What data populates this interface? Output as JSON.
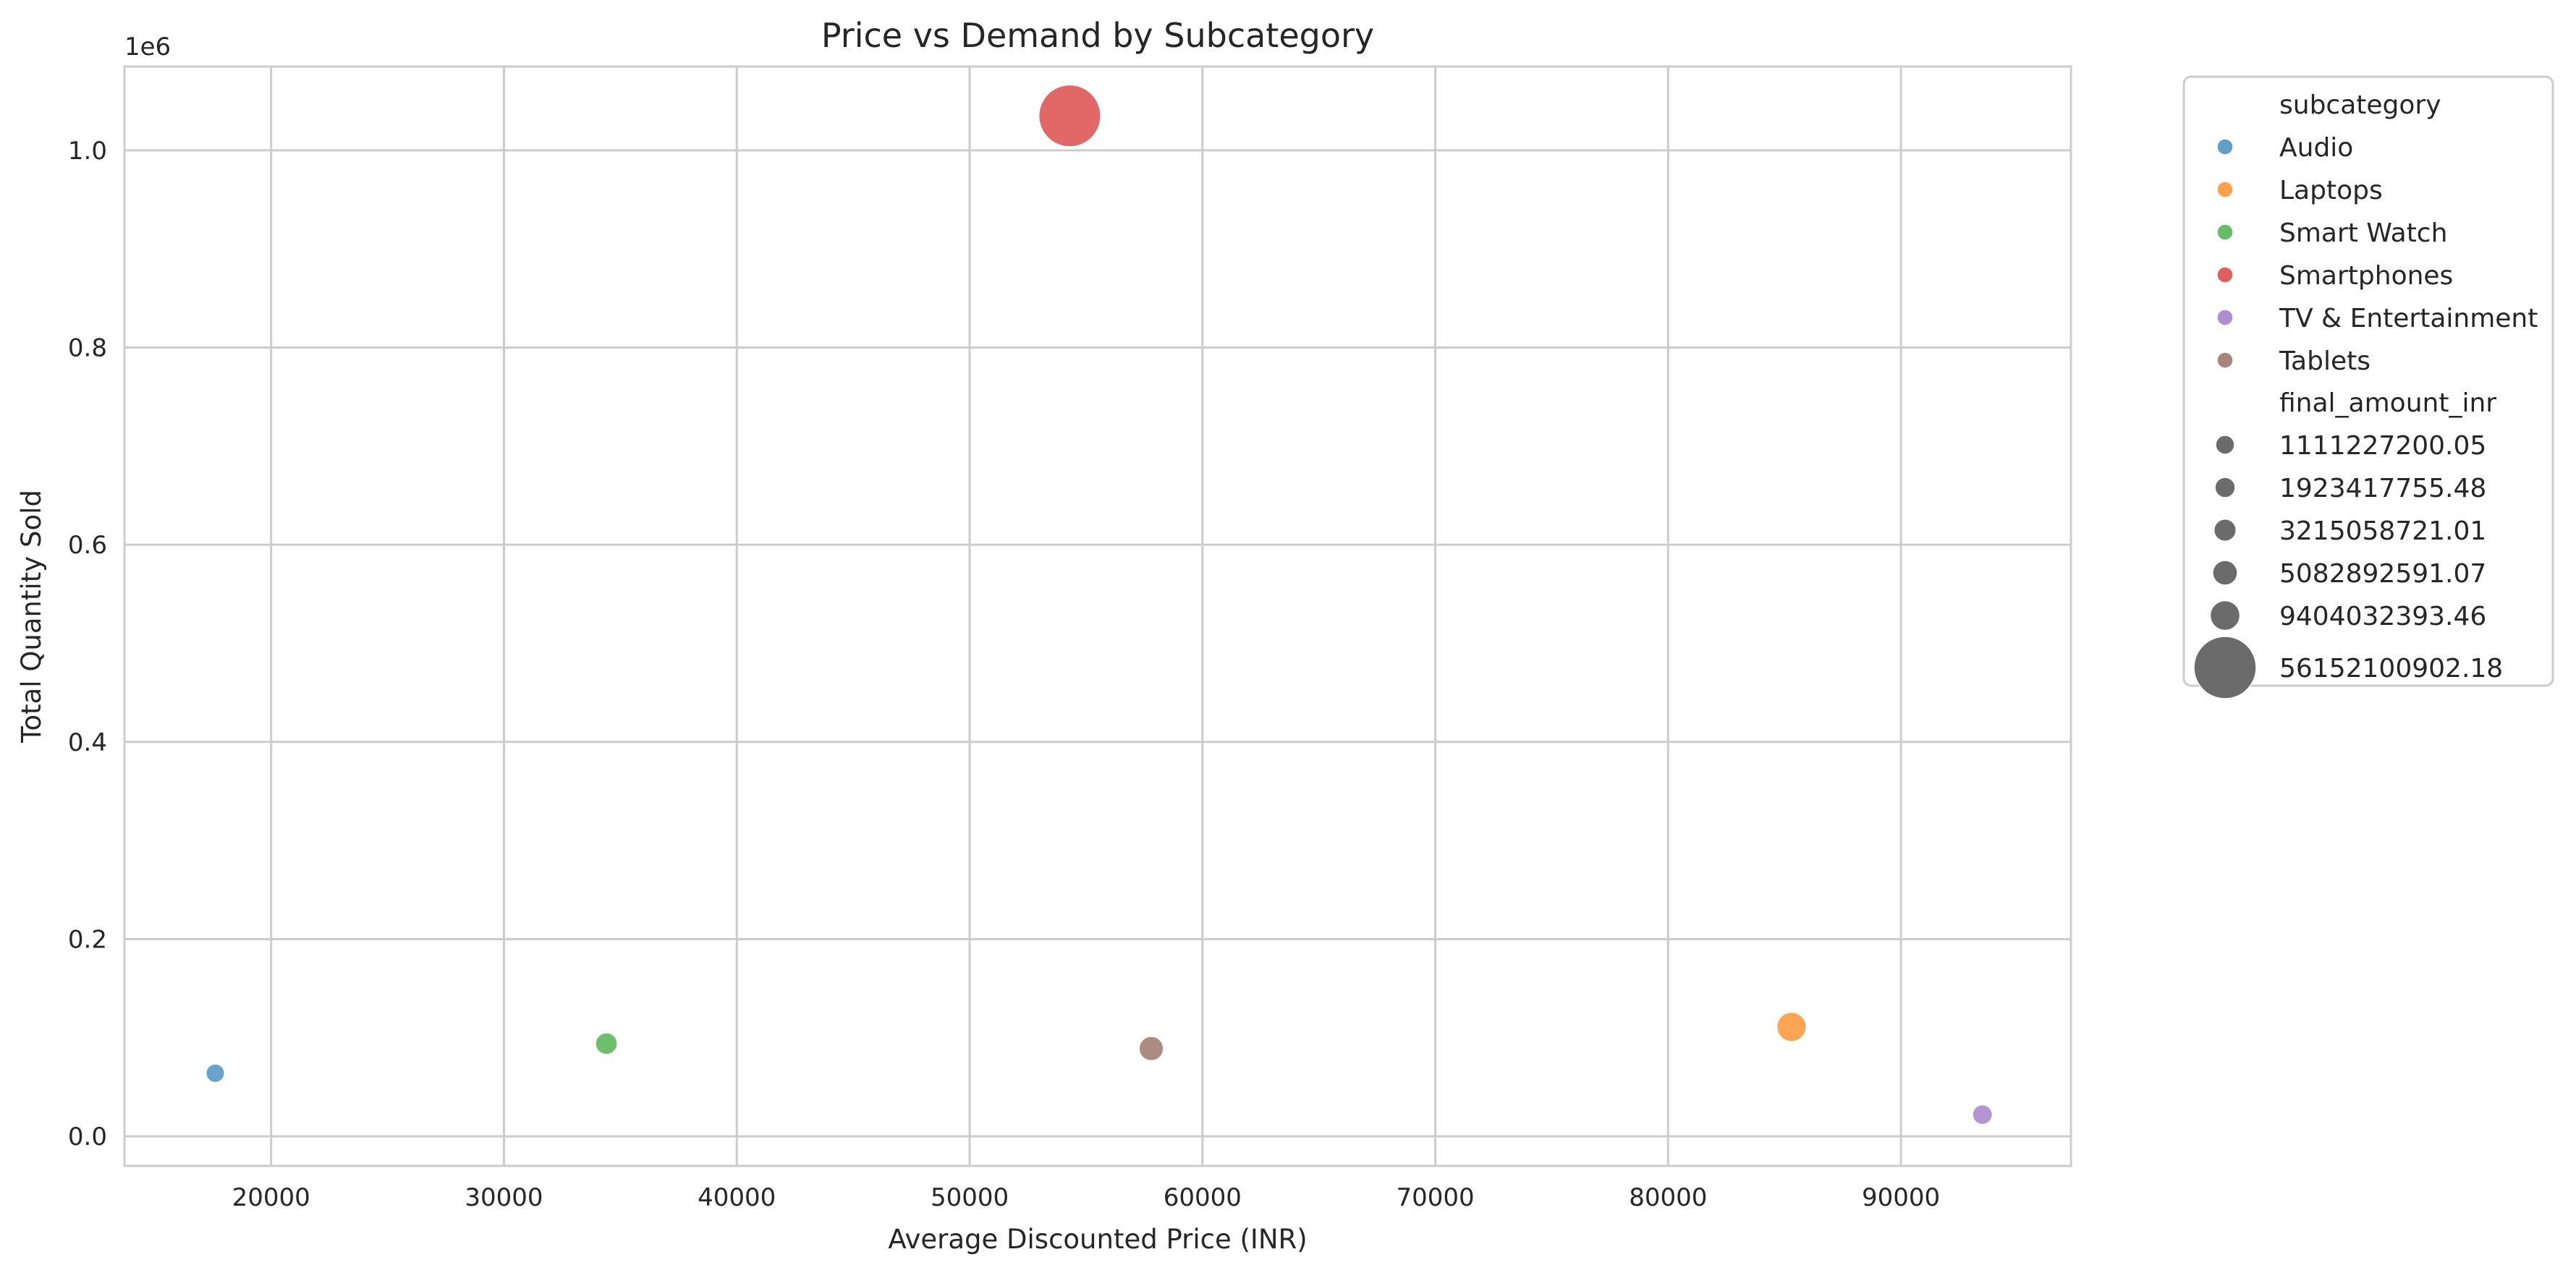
{
  "chart_data": {
    "type": "scatter",
    "title": "Price vs Demand by Subcategory",
    "xlabel": "Average Discounted Price (INR)",
    "ylabel": "Total Quantity Sold",
    "y_offset_label": "1e6",
    "xlim": [
      13700,
      97300
    ],
    "ylim": [
      -30000,
      1085000
    ],
    "x_ticks": [
      20000,
      30000,
      40000,
      50000,
      60000,
      70000,
      80000,
      90000
    ],
    "x_tick_labels": [
      "20000",
      "30000",
      "40000",
      "50000",
      "60000",
      "70000",
      "80000",
      "90000"
    ],
    "y_ticks": [
      0,
      200000,
      400000,
      600000,
      800000,
      1000000
    ],
    "y_tick_labels": [
      "0.0",
      "0.2",
      "0.4",
      "0.6",
      "0.8",
      "1.0"
    ],
    "grid": true,
    "legend_position": "outside-right",
    "hue_title": "subcategory",
    "size_title": "final_amount_inr",
    "series": [
      {
        "name": "Audio",
        "color": "#5f9ec9",
        "x": 17600,
        "y": 64000,
        "final_amount_inr": 1111227200.05
      },
      {
        "name": "Laptops",
        "color": "#fda04b",
        "x": 85300,
        "y": 111000,
        "final_amount_inr": 9404032393.46
      },
      {
        "name": "Smart Watch",
        "color": "#66bb66",
        "x": 34400,
        "y": 94000,
        "final_amount_inr": 3215058721.01
      },
      {
        "name": "Smartphones",
        "color": "#e0605f",
        "x": 54300,
        "y": 1035000,
        "final_amount_inr": 56152100902.18
      },
      {
        "name": "TV & Entertainment",
        "color": "#b08ed1",
        "x": 93500,
        "y": 22000,
        "final_amount_inr": 1923417755.48
      },
      {
        "name": "Tablets",
        "color": "#a7857b",
        "x": 57800,
        "y": 89000,
        "final_amount_inr": 5082892591.07
      }
    ],
    "size_legend": [
      {
        "label": "1111227200.05",
        "value": 1111227200.05
      },
      {
        "label": "1923417755.48",
        "value": 1923417755.48
      },
      {
        "label": "3215058721.01",
        "value": 3215058721.01
      },
      {
        "label": "5082892591.07",
        "value": 5082892591.07
      },
      {
        "label": "9404032393.46",
        "value": 9404032393.46
      },
      {
        "label": "56152100902.18",
        "value": 56152100902.18
      }
    ],
    "size_legend_color": "#6b6b6b"
  }
}
